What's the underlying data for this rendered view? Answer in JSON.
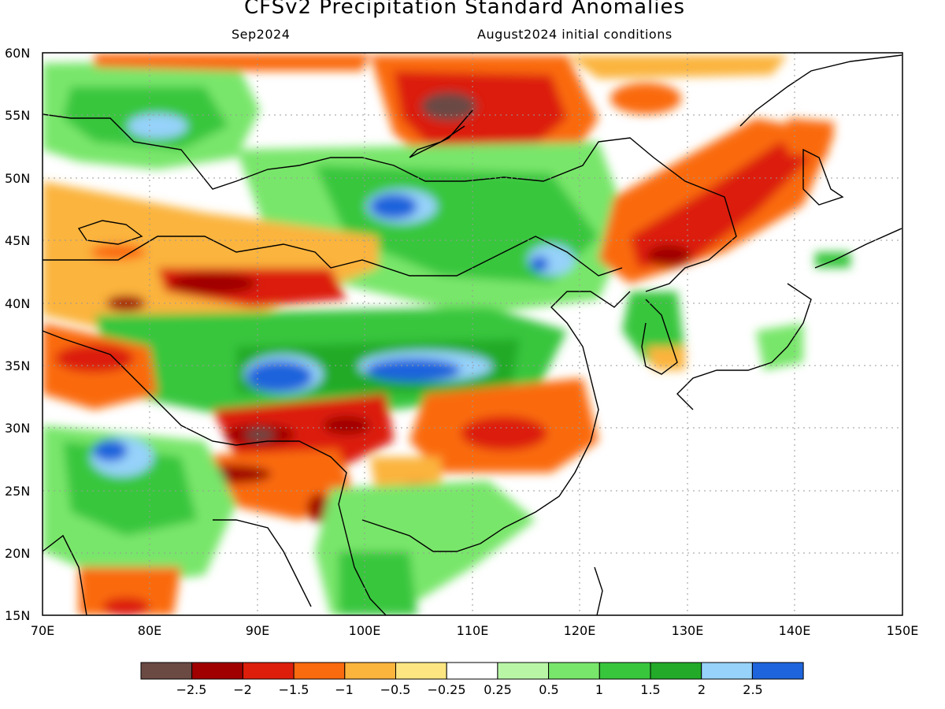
{
  "title": "CFSv2 Precipitation Standard Anomalies",
  "subtitle_left": "Sep2024",
  "subtitle_right": "August2024 initial conditions",
  "map": {
    "lon_range": [
      70,
      150
    ],
    "lat_range": [
      15,
      60
    ],
    "lat_ticks": [
      "60N",
      "55N",
      "50N",
      "45N",
      "40N",
      "35N",
      "30N",
      "25N",
      "20N",
      "15N"
    ],
    "lon_ticks": [
      "70E",
      "80E",
      "90E",
      "100E",
      "110E",
      "120E",
      "130E",
      "140E",
      "150E"
    ]
  },
  "colorbar": {
    "colors": [
      "#6b4a44",
      "#a00000",
      "#dc1e0a",
      "#fa6a0e",
      "#fbb43c",
      "#fde682",
      "#ffffff",
      "#b8f6a6",
      "#78e66a",
      "#38c63c",
      "#22aa28",
      "#96d2fa",
      "#1e64dc"
    ],
    "labels": [
      "−2.5",
      "−2",
      "−1.5",
      "−1",
      "−0.5",
      "−0.25",
      "0.25",
      "0.5",
      "1",
      "1.5",
      "2",
      "2.5"
    ]
  }
}
